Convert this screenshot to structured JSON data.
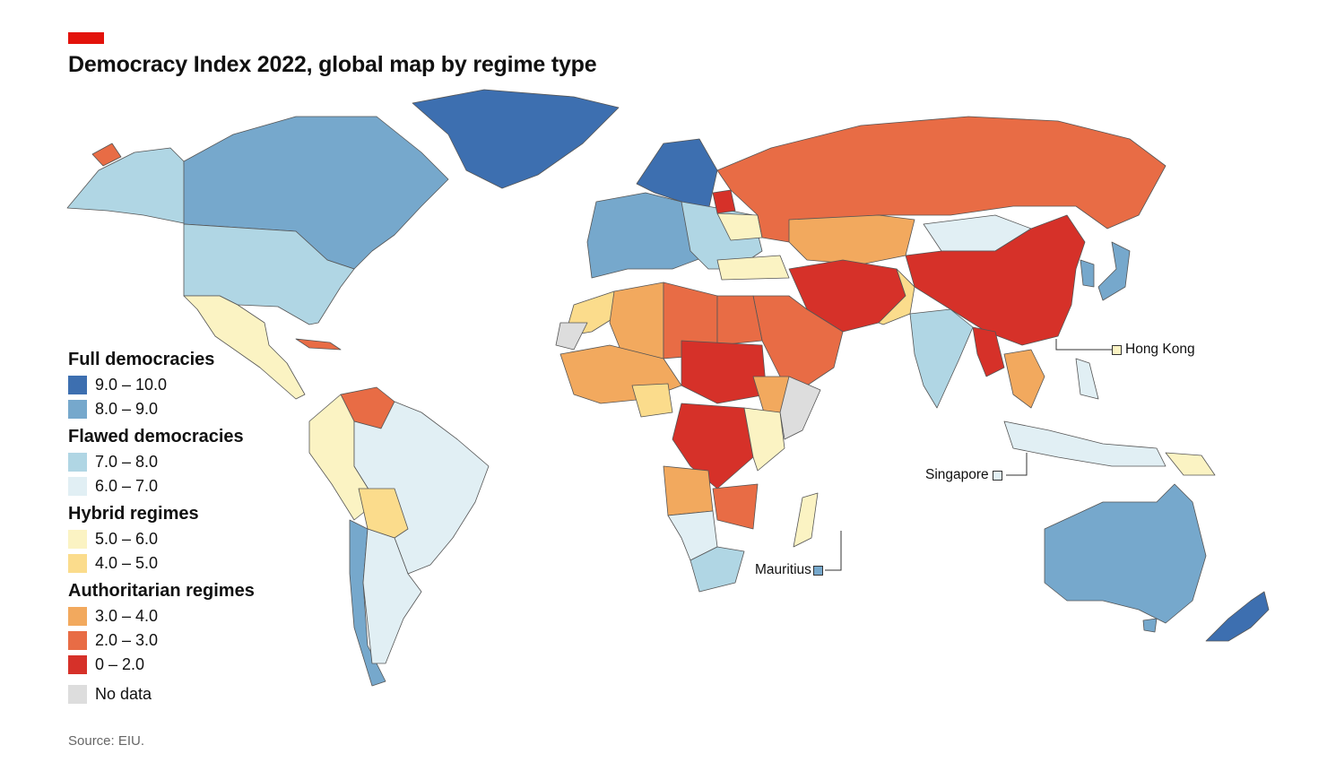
{
  "title": "Democracy Index 2022, global map by regime type",
  "source": "Source: EIU.",
  "legend": {
    "groups": [
      {
        "heading": "Full democracies",
        "items": [
          {
            "label": "9.0 – 10.0",
            "color": "#3d6fb0"
          },
          {
            "label": "8.0 – 9.0",
            "color": "#76a8cc"
          }
        ]
      },
      {
        "heading": "Flawed democracies",
        "items": [
          {
            "label": "7.0 – 8.0",
            "color": "#b0d6e4"
          },
          {
            "label": "6.0 – 7.0",
            "color": "#e1eff4"
          }
        ]
      },
      {
        "heading": "Hybrid regimes",
        "items": [
          {
            "label": "5.0 – 6.0",
            "color": "#fbf3c3"
          },
          {
            "label": "4.0 – 5.0",
            "color": "#fbdc8c"
          }
        ]
      },
      {
        "heading": "Authoritarian regimes",
        "items": [
          {
            "label": "3.0 – 4.0",
            "color": "#f2a95e"
          },
          {
            "label": "2.0 – 3.0",
            "color": "#e86c45"
          },
          {
            "label": "0 – 2.0",
            "color": "#d63129"
          }
        ]
      }
    ],
    "no_data": {
      "label": "No data",
      "color": "#dddddd"
    }
  },
  "callouts": {
    "hong_kong": {
      "label": "Hong Kong",
      "color": "#fbf3c3"
    },
    "singapore": {
      "label": "Singapore",
      "color": "#e1eff4"
    },
    "mauritius": {
      "label": "Mauritius",
      "color": "#76a8cc"
    }
  }
}
